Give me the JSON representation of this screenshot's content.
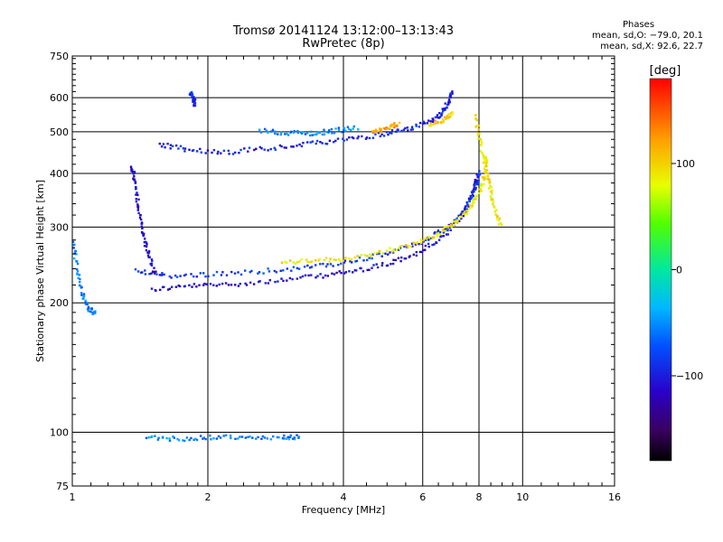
{
  "title_line1": "Tromsø 20141124 13:12:00–13:13:43",
  "title_line2": "RwPretec (8p)",
  "phases": {
    "title": "Phases",
    "line_o": "mean, sd,O: −79.0, 20.1",
    "line_x": "mean, sd,X:  92.6, 22.7"
  },
  "colorbar": {
    "label": "[deg]",
    "ticks": [
      "100",
      "0",
      "−100"
    ],
    "tick_values": [
      100,
      0,
      -100
    ],
    "range": [
      -180,
      180
    ]
  },
  "chart_data": {
    "type": "scatter",
    "title": "Tromsø 20141124 13:12:00–13:13:43",
    "subtitle": "RwPretec (8p)",
    "xlabel": "Frequency [MHz]",
    "ylabel": "Stationary phase Virtual Height [km]",
    "xscale": "log",
    "yscale": "log",
    "xlim": [
      1,
      16
    ],
    "ylim": [
      75,
      750
    ],
    "xticks": [
      1,
      2,
      4,
      6,
      8,
      10,
      16
    ],
    "xtick_labels": [
      "1",
      "2",
      "4",
      "6",
      "8",
      "10",
      "16"
    ],
    "yticks": [
      75,
      100,
      200,
      300,
      400,
      500,
      600,
      750
    ],
    "ytick_labels": [
      "75",
      "100",
      "200",
      "300",
      "400",
      "500",
      "600",
      "750"
    ],
    "grid": true,
    "series": [
      {
        "points": [
          [
            1.49,
            216
          ],
          [
            1.8,
            220
          ],
          [
            2.2,
            222
          ],
          [
            2.8,
            226
          ],
          [
            3.5,
            232
          ],
          [
            4.2,
            238
          ],
          [
            5.0,
            248
          ],
          [
            5.8,
            262
          ],
          [
            6.6,
            285
          ],
          [
            7.3,
            320
          ],
          [
            7.7,
            360
          ],
          [
            7.9,
            400
          ]
        ],
        "phase": -110
      },
      {
        "points": [
          [
            1.38,
            240
          ],
          [
            1.6,
            232
          ],
          [
            2.0,
            234
          ],
          [
            2.6,
            238
          ],
          [
            3.3,
            243
          ],
          [
            4.1,
            250
          ],
          [
            5.0,
            262
          ],
          [
            6.0,
            280
          ],
          [
            6.8,
            300
          ],
          [
            7.4,
            330
          ],
          [
            7.8,
            370
          ],
          [
            8.0,
            410
          ]
        ],
        "phase": -85
      },
      {
        "points": [
          [
            2.9,
            250
          ],
          [
            3.5,
            252
          ],
          [
            4.2,
            256
          ],
          [
            5.0,
            266
          ],
          [
            5.8,
            278
          ],
          [
            6.5,
            292
          ],
          [
            7.1,
            310
          ],
          [
            7.6,
            335
          ],
          [
            8.0,
            365
          ],
          [
            8.2,
            400
          ],
          [
            8.3,
            440
          ]
        ],
        "phase": 90
      },
      {
        "points": [
          [
            1.35,
            420
          ],
          [
            1.37,
            380
          ],
          [
            1.4,
            330
          ],
          [
            1.43,
            290
          ],
          [
            1.47,
            260
          ],
          [
            1.52,
            235
          ]
        ],
        "phase": -110
      },
      {
        "points": [
          [
            1.55,
            470
          ],
          [
            1.8,
            456
          ],
          [
            2.2,
            450
          ],
          [
            2.7,
            460
          ],
          [
            3.3,
            470
          ],
          [
            4.0,
            482
          ],
          [
            4.8,
            495
          ],
          [
            5.5,
            510
          ],
          [
            6.2,
            530
          ],
          [
            6.6,
            555
          ],
          [
            6.8,
            590
          ],
          [
            6.95,
            620
          ]
        ],
        "phase": -95
      },
      {
        "points": [
          [
            2.6,
            505
          ],
          [
            3.0,
            500
          ],
          [
            3.4,
            498
          ],
          [
            3.8,
            505
          ],
          [
            4.3,
            515
          ]
        ],
        "phase": -55
      },
      {
        "points": [
          [
            7.8,
            550
          ],
          [
            8.0,
            480
          ],
          [
            8.2,
            420
          ],
          [
            8.4,
            380
          ],
          [
            8.6,
            340
          ],
          [
            8.9,
            300
          ]
        ],
        "phase": 90
      },
      {
        "points": [
          [
            1.45,
            98
          ],
          [
            1.7,
            97
          ],
          [
            2.0,
            98
          ],
          [
            2.4,
            98
          ],
          [
            2.9,
            98
          ],
          [
            3.2,
            98
          ]
        ],
        "phase": -55
      },
      {
        "points": [
          [
            1.0,
            280
          ],
          [
            1.02,
            240
          ],
          [
            1.05,
            210
          ],
          [
            1.08,
            195
          ],
          [
            1.12,
            190
          ]
        ],
        "phase": -55
      },
      {
        "points": [
          [
            1.82,
            620
          ],
          [
            1.85,
            600
          ],
          [
            1.86,
            575
          ]
        ],
        "phase": -90
      },
      {
        "points": [
          [
            6.2,
            520
          ],
          [
            6.6,
            535
          ],
          [
            7.0,
            555
          ]
        ],
        "phase": 100
      },
      {
        "points": [
          [
            4.6,
            500
          ],
          [
            5.0,
            515
          ],
          [
            5.3,
            525
          ]
        ],
        "phase": 120
      }
    ]
  }
}
